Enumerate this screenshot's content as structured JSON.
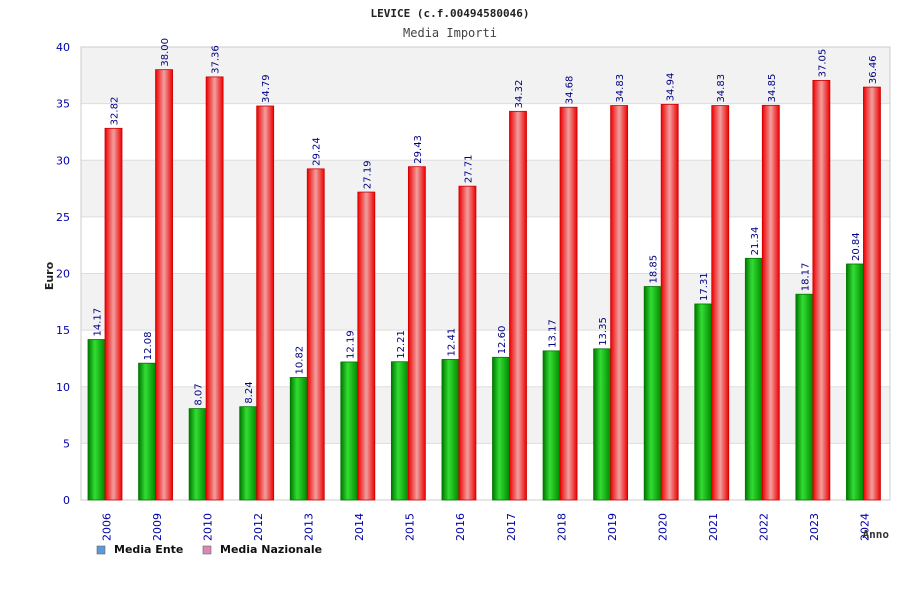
{
  "chart_data": {
    "type": "bar",
    "title": "LEVICE (c.f.00494580046)",
    "subtitle": "Media Importi",
    "xlabel": "Anno",
    "ylabel": "Euro",
    "ylim": [
      0,
      40
    ],
    "yticks": [
      0,
      5,
      10,
      15,
      20,
      25,
      30,
      35,
      40
    ],
    "grid": true,
    "legend_position": "bottom-left",
    "categories": [
      "2006",
      "2009",
      "2010",
      "2012",
      "2013",
      "2014",
      "2015",
      "2016",
      "2017",
      "2018",
      "2019",
      "2020",
      "2021",
      "2022",
      "2023",
      "2024"
    ],
    "series": [
      {
        "name": "Media Ente",
        "color": "#00aa00",
        "legend_color": "#5b9bd5",
        "values": [
          14.17,
          12.08,
          8.07,
          8.24,
          10.82,
          12.19,
          12.21,
          12.41,
          12.6,
          13.17,
          13.35,
          18.85,
          17.31,
          21.34,
          18.17,
          20.84
        ],
        "labels": [
          "14.17",
          "12.08",
          "8.07",
          "8.24",
          "10.82",
          "12.19",
          "12.21",
          "12.41",
          "12.60",
          "13.17",
          "13.35",
          "18.85",
          "17.31",
          "21.34",
          "18.17",
          "20.84"
        ]
      },
      {
        "name": "Media Nazionale",
        "color": "#ee0000",
        "legend_color": "#d98ab4",
        "values": [
          32.82,
          38.0,
          37.36,
          34.79,
          29.24,
          27.19,
          29.43,
          27.71,
          34.32,
          34.68,
          34.83,
          34.94,
          34.83,
          34.85,
          37.05,
          36.46
        ],
        "labels": [
          "32.82",
          "38.00",
          "37.36",
          "34.79",
          "29.24",
          "27.19",
          "29.43",
          "27.71",
          "34.32",
          "34.68",
          "34.83",
          "34.94",
          "34.83",
          "34.85",
          "37.05",
          "36.46"
        ]
      }
    ]
  }
}
